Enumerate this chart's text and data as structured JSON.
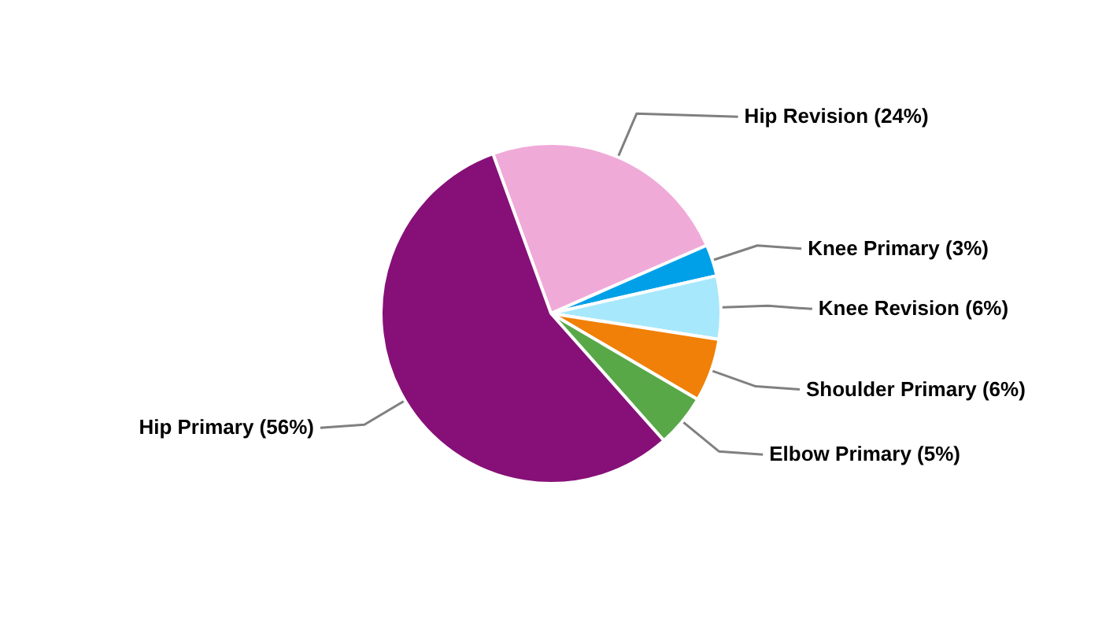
{
  "chart_data": {
    "type": "pie",
    "categories": [
      "Hip Revision",
      "Knee Primary",
      "Knee Revision",
      "Shoulder Primary",
      "Elbow Primary",
      "Hip Primary"
    ],
    "values": [
      24,
      3,
      6,
      6,
      5,
      56
    ],
    "value_labels": [
      "(24%)",
      "(3%)",
      "(6%)",
      "(6%)",
      "(5%)",
      "(56%)"
    ],
    "colors": [
      "#f0aad8",
      "#00a0e8",
      "#a8e8fc",
      "#f08008",
      "#58a848",
      "#861078"
    ]
  }
}
